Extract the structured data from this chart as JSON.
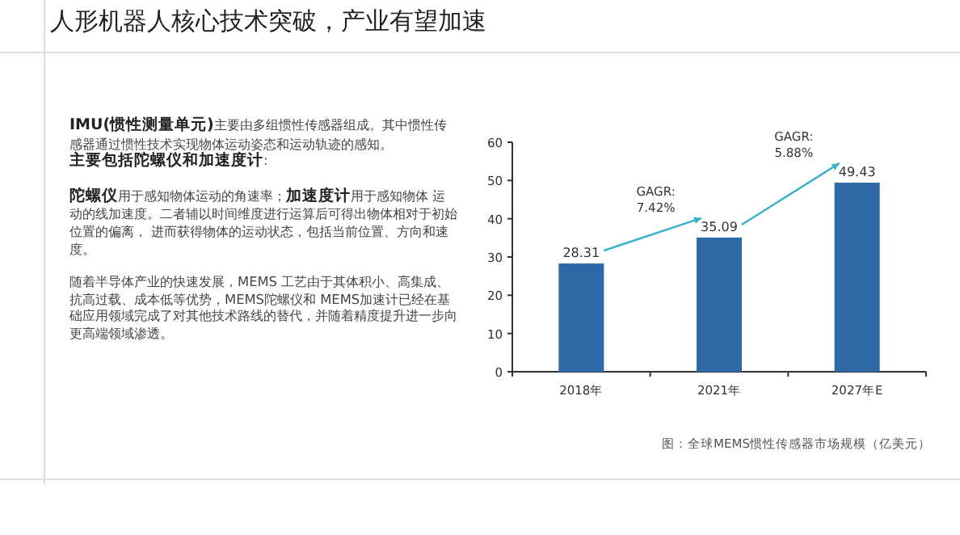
{
  "chart_data": {
    "type": "bar",
    "title": "人形机器人核心技术突破，产业有望加速",
    "categories": [
      "2018年",
      "2021年",
      "2027年E"
    ],
    "values": [
      28.31,
      35.09,
      49.43
    ],
    "color": "#2e6aa8",
    "ylim": [
      0,
      60
    ],
    "yticks": [
      0,
      10,
      20,
      30,
      40,
      50,
      60
    ],
    "grid": false,
    "data_labels": true,
    "annotations": [
      "图：全球MEMS惯性传感器市场规模（亿美元）",
      "GAGR: 7.42%",
      "GAGR: 5.88%",
      "**IMU(惯性测量单元)**主要由多组惯性传感器组成。其中惯性传感器通过惯性技术实现物体运动姿态和运动轨迹的感知。",
      "**主要包括陀螺仪和加速度计**:",
      "**陀螺仪**用于感知物体运动的角速率；**加速度计**用于感知物体 运动的线加速度。二者辅以时间维度进行运算后可得出物体相对于初始位置的偏离， 进而获得物体的运动状态，包括当前位置、方向和速度。",
      "随着半导体产业的快速发展，MEMS 工艺由于其体积小、高集成、抗高过载、成本低等优势，MEMS陀螺仪和 MEMS加速计已经在基础应用领域完成了对其他技术路线的替代，并随着精度提升进一步向更高端领域渗透。"
    ]
  }
}
